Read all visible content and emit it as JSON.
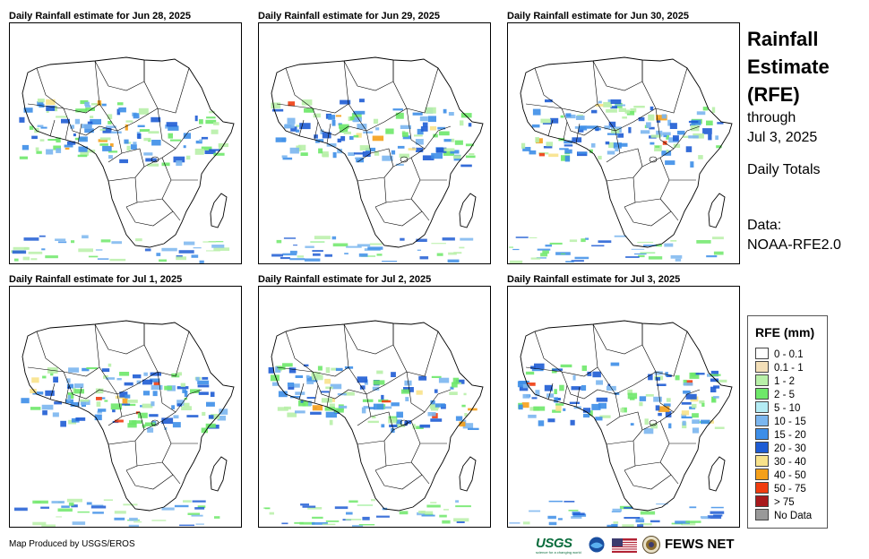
{
  "panels": [
    {
      "title": "Daily Rainfall estimate for Jun 28, 2025"
    },
    {
      "title": "Daily Rainfall estimate for Jun 29, 2025"
    },
    {
      "title": "Daily Rainfall estimate for Jun 30, 2025"
    },
    {
      "title": "Daily Rainfall estimate for Jul 1, 2025"
    },
    {
      "title": "Daily Rainfall estimate for Jul 2, 2025"
    },
    {
      "title": "Daily Rainfall estimate for Jul 3, 2025"
    }
  ],
  "header": {
    "line1": "Rainfall",
    "line2": "Estimate",
    "line3": "(RFE)",
    "through_label": "through",
    "through_date": "Jul 3, 2025",
    "totals_label": "Daily Totals",
    "data_label": "Data:",
    "data_source": "NOAA-RFE2.0"
  },
  "legend": {
    "title": "RFE (mm)",
    "items": [
      {
        "label": "0 - 0.1",
        "color": "#ffffff"
      },
      {
        "label": "0.1 - 1",
        "color": "#f3dfb8"
      },
      {
        "label": "1 - 2",
        "color": "#b8f0a8"
      },
      {
        "label": "2 - 5",
        "color": "#6ee86a"
      },
      {
        "label": "5 - 10",
        "color": "#b4ecf4"
      },
      {
        "label": "10 - 15",
        "color": "#7bb6ef"
      },
      {
        "label": "15 - 20",
        "color": "#3d8ee8"
      },
      {
        "label": "20 - 30",
        "color": "#1e5cd4"
      },
      {
        "label": "30 - 40",
        "color": "#f8e28a"
      },
      {
        "label": "40 - 50",
        "color": "#f5a019"
      },
      {
        "label": "50 - 75",
        "color": "#f03c10"
      },
      {
        "label": "> 75",
        "color": "#a8191c"
      },
      {
        "label": "No Data",
        "color": "#999999"
      }
    ]
  },
  "footer": {
    "credit": "Map Produced by USGS/EROS",
    "usgs_logo": "USGS",
    "usgs_tagline": "science for a changing world",
    "fews_logo": "FEWS NET"
  }
}
